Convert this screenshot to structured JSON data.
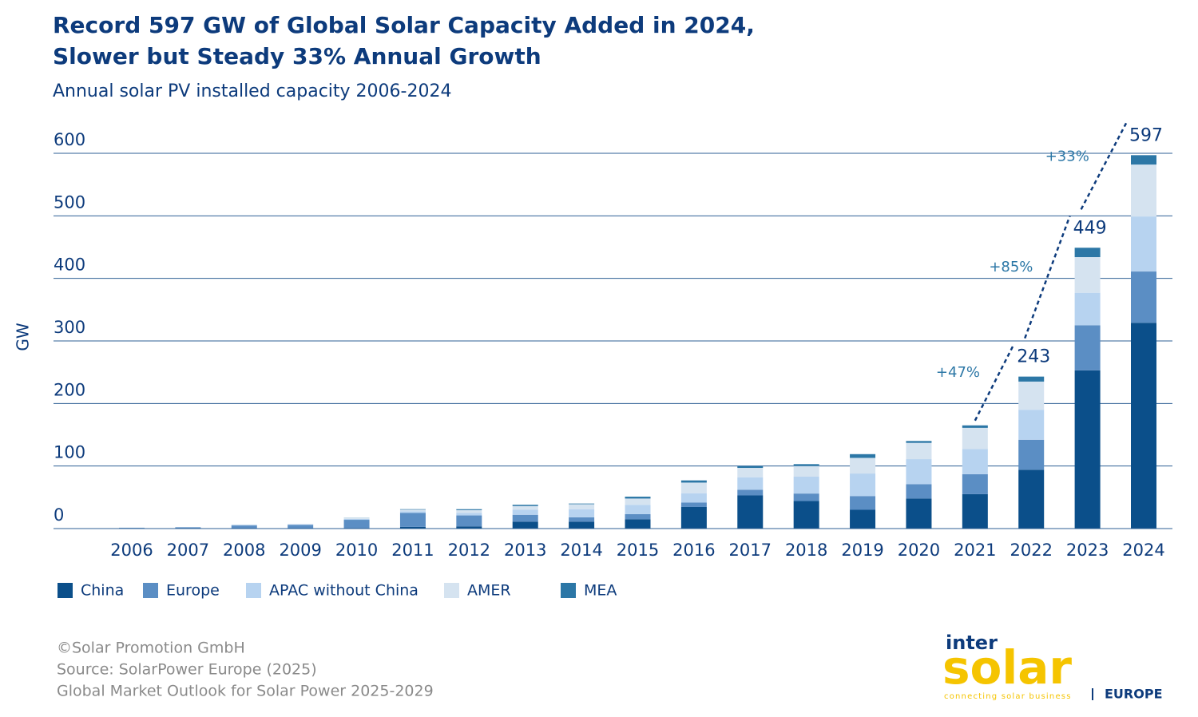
{
  "chart_data": {
    "type": "stacked_bar",
    "title": [
      "Record 597 GW of Global Solar Capacity Added in 2024,",
      "Slower but Steady 33% Annual Growth"
    ],
    "subtitle": "Annual solar PV installed capacity 2006-2024",
    "y_label": "GW",
    "categories": [
      "2006",
      "2007",
      "2008",
      "2009",
      "2010",
      "2011",
      "2012",
      "2013",
      "2014",
      "2015",
      "2016",
      "2017",
      "2018",
      "2019",
      "2020",
      "2021",
      "2022",
      "2023",
      "2024"
    ],
    "series": [
      {
        "name": "China",
        "color": "#0b4f8a",
        "values": [
          0,
          0,
          0,
          0.2,
          0.5,
          2.7,
          3.5,
          11,
          11,
          15,
          34.5,
          53,
          44,
          30,
          48,
          55,
          94,
          253,
          329
        ]
      },
      {
        "name": "Europe",
        "color": "#5b8ec4",
        "values": [
          1.2,
          2,
          5,
          5.8,
          13.5,
          22.5,
          17.5,
          11,
          7,
          8,
          7,
          9,
          12,
          22,
          23,
          32,
          48,
          72,
          82
        ]
      },
      {
        "name": "APAC without China",
        "color": "#b7d3f0",
        "values": [
          0.2,
          0.3,
          0.7,
          0.8,
          1.5,
          2.5,
          4,
          8,
          13,
          15,
          15,
          20,
          27,
          36,
          40,
          40,
          48,
          52,
          88
        ]
      },
      {
        "name": "AMER",
        "color": "#d5e3f0",
        "values": [
          0.2,
          0.2,
          0.8,
          0.6,
          1.2,
          2.5,
          4.5,
          6,
          8,
          10,
          17,
          15,
          17,
          25,
          26,
          34,
          45,
          57,
          83
        ]
      },
      {
        "name": "MEA",
        "color": "#2c77a6",
        "values": [
          0,
          0,
          0,
          0,
          0.3,
          0.8,
          1.5,
          2,
          1,
          3,
          3.5,
          3,
          3,
          6,
          3,
          4,
          8,
          15,
          15
        ]
      }
    ],
    "total_labels": [
      null,
      null,
      null,
      null,
      null,
      null,
      null,
      null,
      null,
      null,
      null,
      null,
      null,
      null,
      null,
      null,
      243,
      449,
      597
    ],
    "growth_labels": [
      null,
      null,
      null,
      null,
      null,
      null,
      null,
      null,
      null,
      null,
      null,
      null,
      null,
      null,
      null,
      null,
      "+47%",
      "+85%",
      "+33%"
    ],
    "ylim": [
      0,
      600
    ],
    "yticks": [
      0,
      100,
      200,
      300,
      400,
      500,
      600
    ],
    "grid": true,
    "legend": "bottom-left"
  },
  "footer": [
    "©Solar Promotion GmbH",
    "Source: SolarPower Europe (2025)",
    "Global Market Outlook for Solar Power 2025-2029"
  ],
  "logo": {
    "top": "inter",
    "main": "solar",
    "tagline": "connecting solar business",
    "region": "EUROPE"
  }
}
